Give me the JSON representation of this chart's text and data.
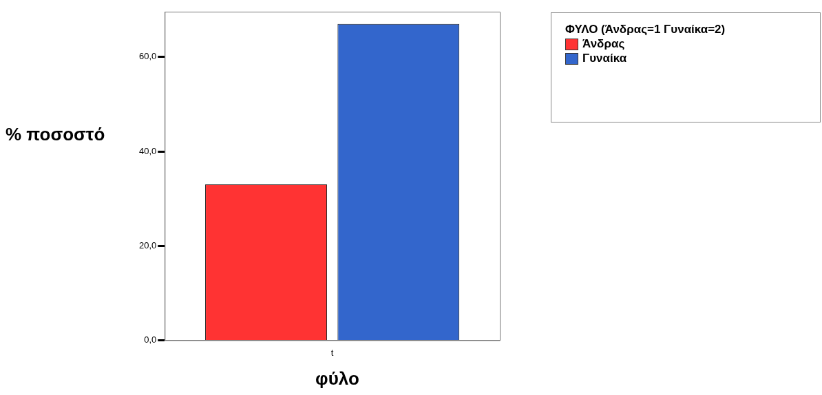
{
  "chart_data": {
    "type": "bar",
    "xlabel": "φύλο",
    "ylabel": "% ποσοστό",
    "legend_title": "ΦΥΛΟ  (Άνδρας=1  Γυναίκα=2)",
    "categories": [
      "t"
    ],
    "series": [
      {
        "name": "Άνδρας",
        "color": "#ff3333",
        "values": [
          33
        ]
      },
      {
        "name": "Γυναίκα",
        "color": "#3366cc",
        "values": [
          67
        ]
      }
    ],
    "ylim": [
      0,
      69.6
    ],
    "yticks": [
      {
        "value": 0,
        "label": "0,0"
      },
      {
        "value": 20,
        "label": "20,0"
      },
      {
        "value": 40,
        "label": "40,0"
      },
      {
        "value": 60,
        "label": "60,0"
      }
    ],
    "grid": false,
    "legend": "top right"
  }
}
